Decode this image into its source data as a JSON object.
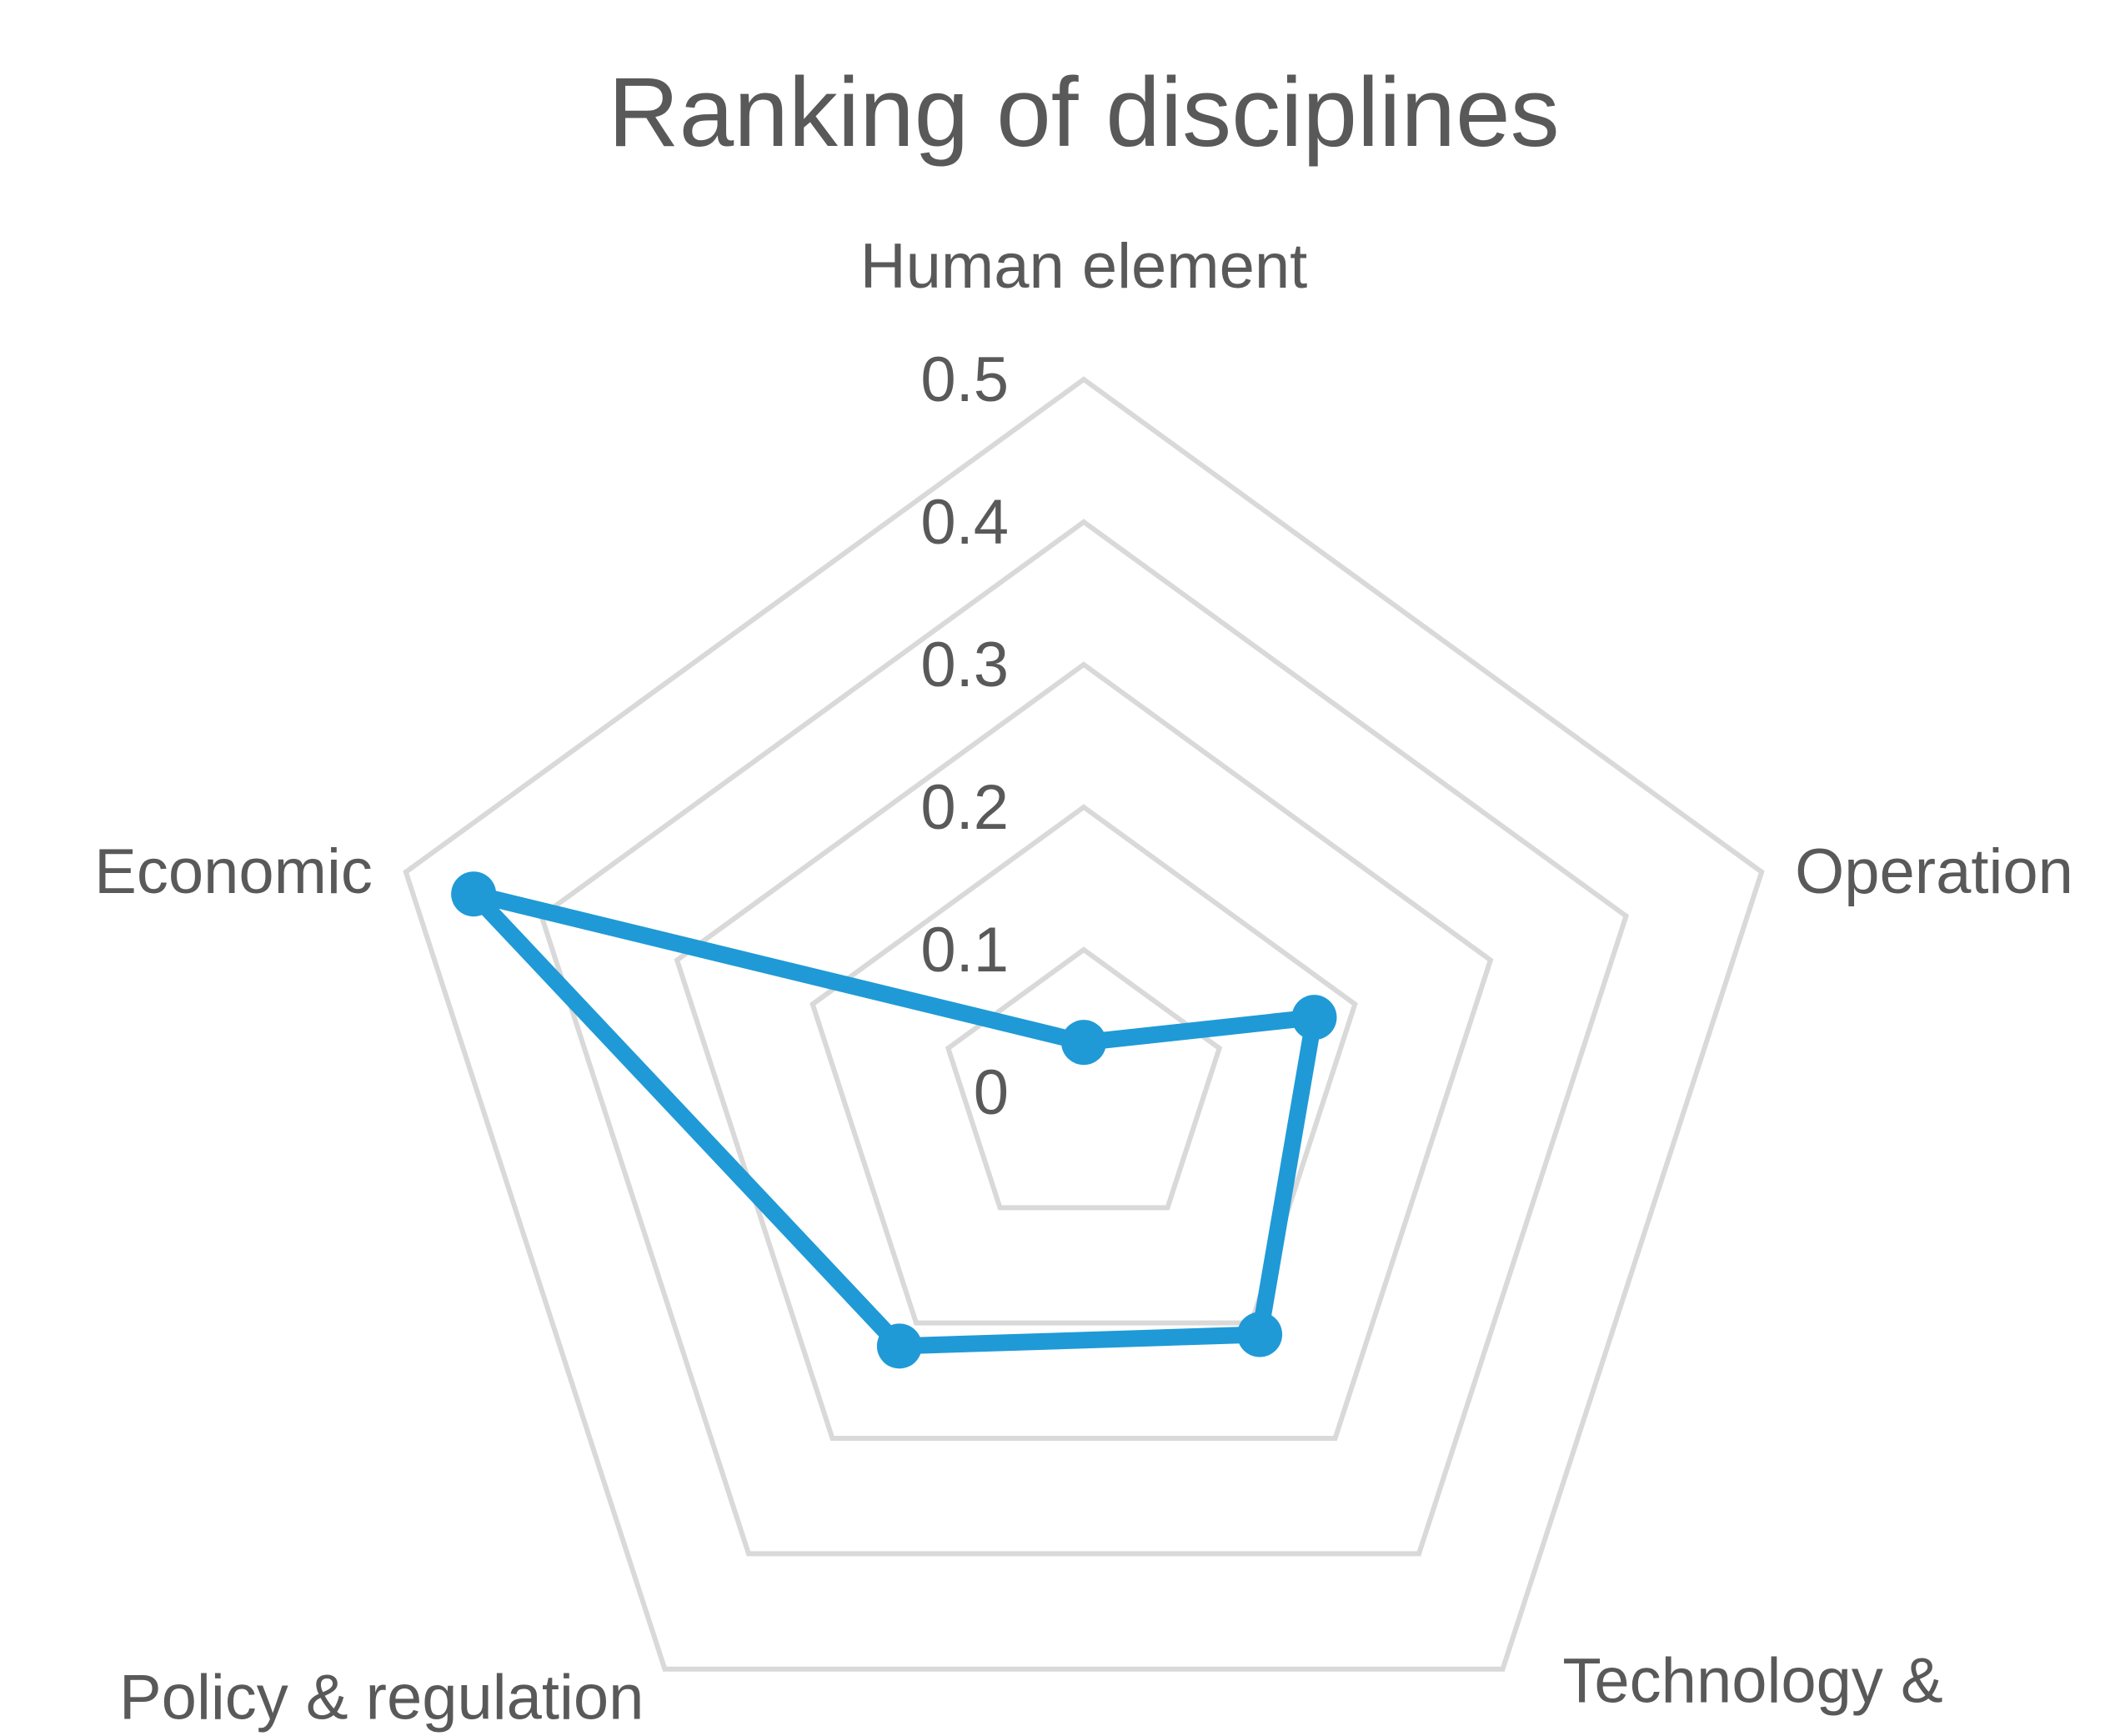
{
  "chart_data": {
    "type": "radar",
    "title": "Ranking of disciplines",
    "categories": [
      "Human element",
      "Operation",
      "Technology & Innovation",
      "Policy & regulation",
      "Economic"
    ],
    "series": [
      {
        "values": [
          0.035,
          0.17,
          0.21,
          0.22,
          0.45
        ],
        "color": "#1f9ad6"
      }
    ],
    "rlim": [
      0,
      0.5
    ],
    "ticks": [
      "0",
      "0.1",
      "0.2",
      "0.3",
      "0.4",
      "0.5"
    ],
    "grid": true,
    "legend": "none",
    "grid_color": "#d9d9d9",
    "text_color": "#595959"
  }
}
